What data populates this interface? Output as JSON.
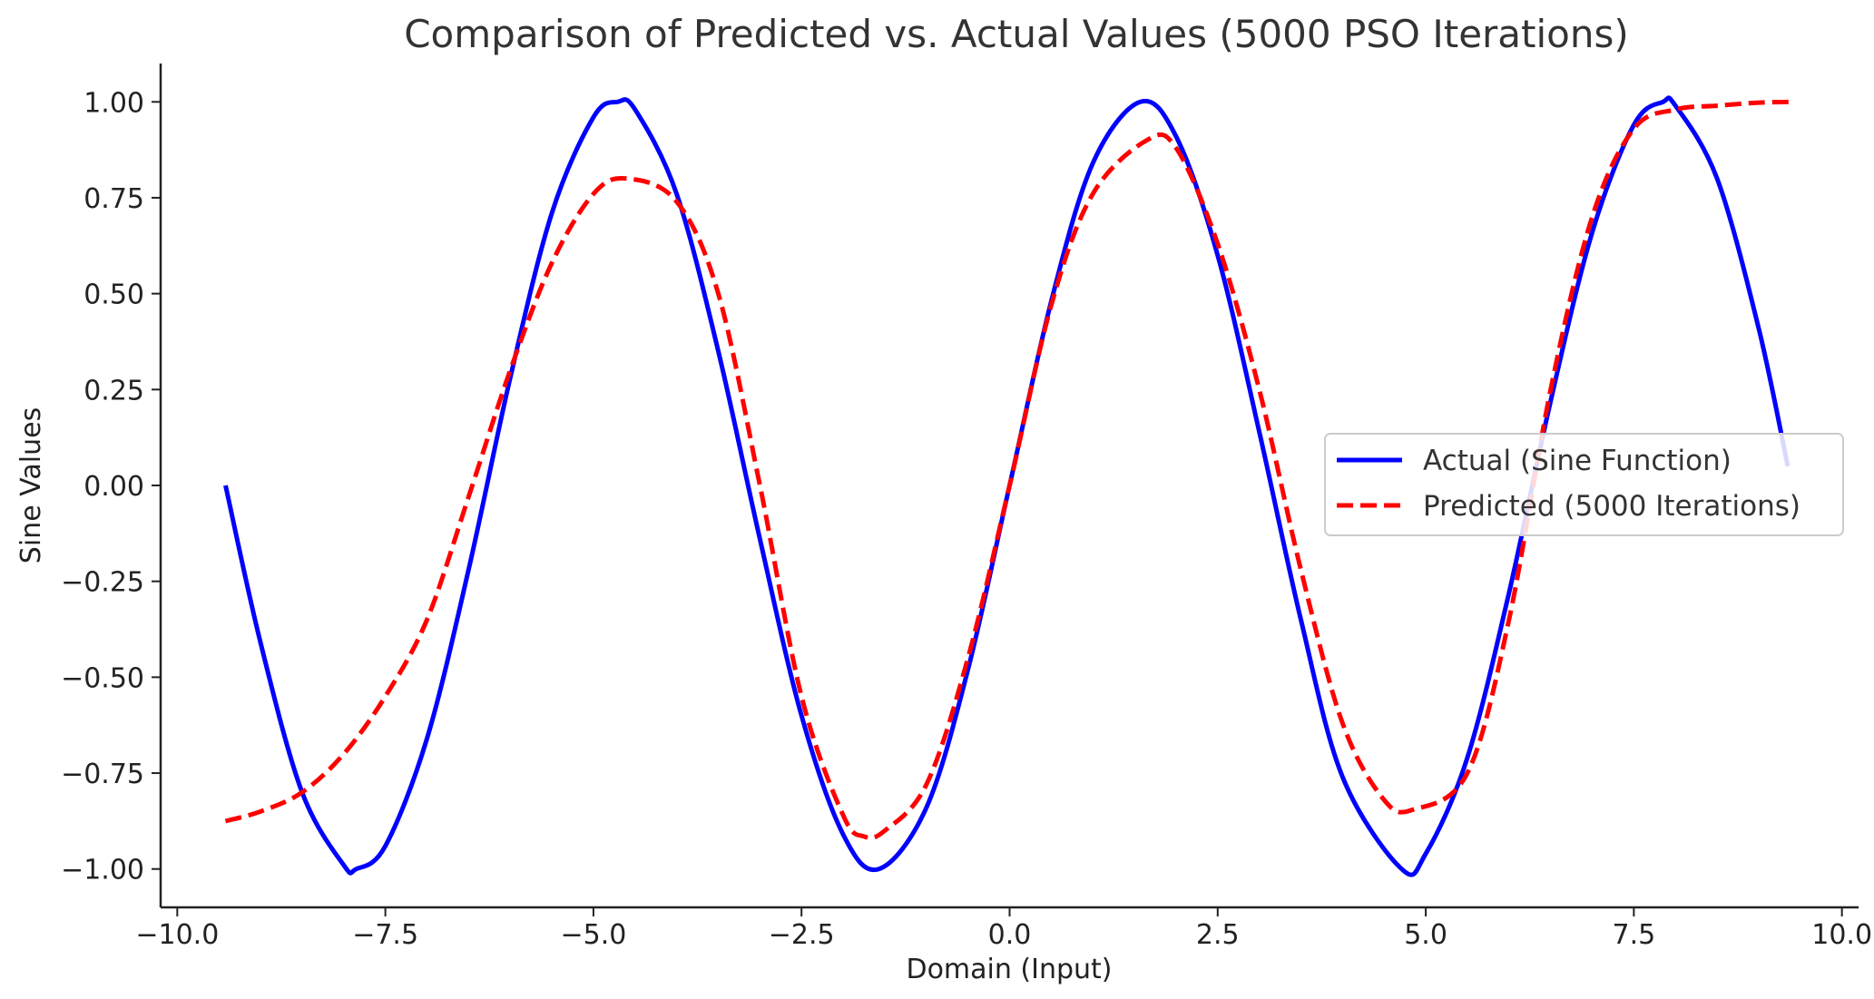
{
  "chart_data": {
    "type": "line",
    "title": "Comparison of Predicted vs. Actual Values (5000 PSO Iterations)",
    "xlabel": "Domain (Input)",
    "ylabel": "Sine Values",
    "xlim": [
      -10.2,
      10.2
    ],
    "ylim": [
      -1.1,
      1.1
    ],
    "x_ticks": [
      -10.0,
      -7.5,
      -5.0,
      -2.5,
      0.0,
      2.5,
      5.0,
      7.5,
      10.0
    ],
    "x_tick_labels": [
      "−10.0",
      "−7.5",
      "−5.0",
      "−2.5",
      "0.0",
      "2.5",
      "5.0",
      "7.5",
      "10.0"
    ],
    "y_ticks": [
      1.0,
      0.75,
      0.5,
      0.25,
      0.0,
      -0.25,
      -0.5,
      -0.75,
      -1.0
    ],
    "y_tick_labels": [
      "1.00",
      "0.75",
      "0.50",
      "0.25",
      "0.00",
      "−0.25",
      "−0.50",
      "−0.75",
      "−1.00"
    ],
    "grid": false,
    "legend_position": "center-right",
    "series": [
      {
        "name": "Actual (Sine Function)",
        "color": "#0000ff",
        "style": "solid",
        "x": [
          -9.42,
          -9.0,
          -8.5,
          -8.0,
          -7.85,
          -7.5,
          -7.0,
          -6.5,
          -6.0,
          -5.5,
          -5.0,
          -4.71,
          -4.5,
          -4.0,
          -3.5,
          -3.0,
          -2.5,
          -2.0,
          -1.57,
          -1.0,
          -0.5,
          0.0,
          0.5,
          1.0,
          1.57,
          2.0,
          2.5,
          3.0,
          3.5,
          4.0,
          4.71,
          5.0,
          5.5,
          6.0,
          6.5,
          7.0,
          7.5,
          7.85,
          8.0,
          8.5,
          9.0,
          9.35
        ],
        "y": [
          0.0,
          -0.41,
          -0.8,
          -0.99,
          -1.0,
          -0.94,
          -0.66,
          -0.22,
          0.28,
          0.71,
          0.96,
          1.0,
          0.98,
          0.76,
          0.35,
          -0.14,
          -0.6,
          -0.91,
          -1.0,
          -0.84,
          -0.48,
          0.0,
          0.48,
          0.84,
          1.0,
          0.91,
          0.6,
          0.14,
          -0.35,
          -0.76,
          -1.0,
          -0.96,
          -0.71,
          -0.28,
          0.22,
          0.66,
          0.94,
          1.0,
          0.99,
          0.8,
          0.41,
          0.05
        ]
      },
      {
        "name": "Predicted (5000 Iterations)",
        "color": "#ff0000",
        "style": "dashed",
        "x": [
          -9.42,
          -9.0,
          -8.5,
          -8.0,
          -7.5,
          -7.0,
          -6.5,
          -6.0,
          -5.5,
          -5.0,
          -4.6,
          -4.0,
          -3.5,
          -3.0,
          -2.5,
          -2.0,
          -1.75,
          -1.5,
          -1.0,
          -0.5,
          0.0,
          0.5,
          1.0,
          1.65,
          2.0,
          2.5,
          3.0,
          3.5,
          4.0,
          4.5,
          4.85,
          5.5,
          6.0,
          6.5,
          7.0,
          7.5,
          8.0,
          8.5,
          9.0,
          9.4
        ],
        "y": [
          -0.875,
          -0.85,
          -0.8,
          -0.7,
          -0.55,
          -0.35,
          -0.03,
          0.3,
          0.58,
          0.76,
          0.8,
          0.74,
          0.5,
          0.0,
          -0.55,
          -0.86,
          -0.915,
          -0.9,
          -0.78,
          -0.45,
          0.0,
          0.47,
          0.76,
          0.9,
          0.88,
          0.63,
          0.25,
          -0.22,
          -0.62,
          -0.82,
          -0.845,
          -0.75,
          -0.35,
          0.25,
          0.7,
          0.93,
          0.98,
          0.99,
          0.998,
          1.0
        ]
      }
    ]
  }
}
